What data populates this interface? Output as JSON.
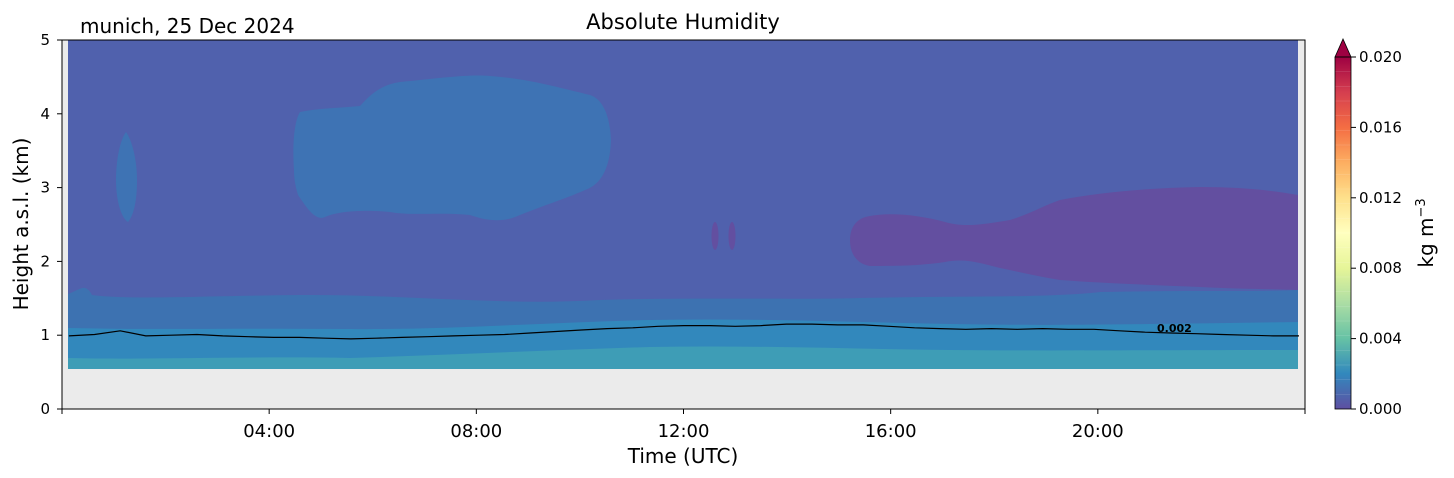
{
  "chart_data": {
    "type": "heatmap",
    "title": "Absolute Humidity",
    "subtitle": "munich, 25 Dec 2024",
    "xlabel": "Time (UTC)",
    "ylabel": "Height a.s.l. (km)",
    "xlim": [
      "00:00",
      "24:00"
    ],
    "ylim": [
      0,
      5
    ],
    "xticks": [
      "04:00",
      "08:00",
      "12:00",
      "16:00",
      "20:00"
    ],
    "yticks": [
      "0",
      "1",
      "2",
      "3",
      "4",
      "5"
    ],
    "colorbar": {
      "label": "kg m",
      "label_exponent": "−3",
      "ticks": [
        "0.000",
        "0.004",
        "0.008",
        "0.012",
        "0.016",
        "0.020"
      ],
      "range": [
        0,
        0.02
      ],
      "extend": "max",
      "colormap": "Spectral_r",
      "levels": 24
    },
    "contour": {
      "level": 0.002,
      "label": "0.002",
      "color": "#000000",
      "height_km": [
        0.99,
        1.01,
        1.06,
        0.99,
        1.0,
        1.01,
        0.99,
        0.98,
        0.97,
        0.97,
        0.96,
        0.95,
        0.96,
        0.97,
        0.98,
        0.99,
        1.0,
        1.01,
        1.03,
        1.05,
        1.07,
        1.09,
        1.1,
        1.12,
        1.13,
        1.13,
        1.12,
        1.13,
        1.15,
        1.15,
        1.14,
        1.14,
        1.12,
        1.1,
        1.09,
        1.08,
        1.09,
        1.08,
        1.09,
        1.08,
        1.08,
        1.06,
        1.04,
        1.03,
        1.02,
        1.01,
        1.0,
        0.99,
        0.99
      ],
      "time_step_hours": 0.5
    },
    "no_data_below_km": 0.55,
    "data_time_range": [
      "00:08",
      "23:53"
    ],
    "regions": [
      {
        "name": "background",
        "value": 0.0006,
        "color": "#5061ad"
      },
      {
        "name": "lowest layer",
        "value": 0.003,
        "color": "#3e9db6",
        "height_km": [
          0.55,
          0.85
        ]
      },
      {
        "name": "lower layer",
        "value": 0.0022,
        "color": "#3288bc",
        "height_km": [
          0.6,
          1.3
        ]
      },
      {
        "name": "transition layer",
        "value": 0.0013,
        "color": "#3d72b1",
        "height_km": [
          0.9,
          1.6
        ]
      },
      {
        "name": "moist layer aloft",
        "value": 0.0012,
        "color": "#3e73b4",
        "time_range": [
          "04:20",
          "10:30"
        ],
        "height_km": [
          2.6,
          4.4
        ]
      },
      {
        "name": "small moist patch",
        "value": 0.0012,
        "color": "#3e73b4",
        "time_range": [
          "01:00",
          "01:25"
        ],
        "height_km": [
          2.6,
          3.7
        ]
      },
      {
        "name": "dry layer",
        "value": 0.0002,
        "color": "#634fa0",
        "time_range": [
          "15:20",
          "23:53"
        ],
        "height_km": [
          1.6,
          2.9
        ]
      }
    ]
  }
}
